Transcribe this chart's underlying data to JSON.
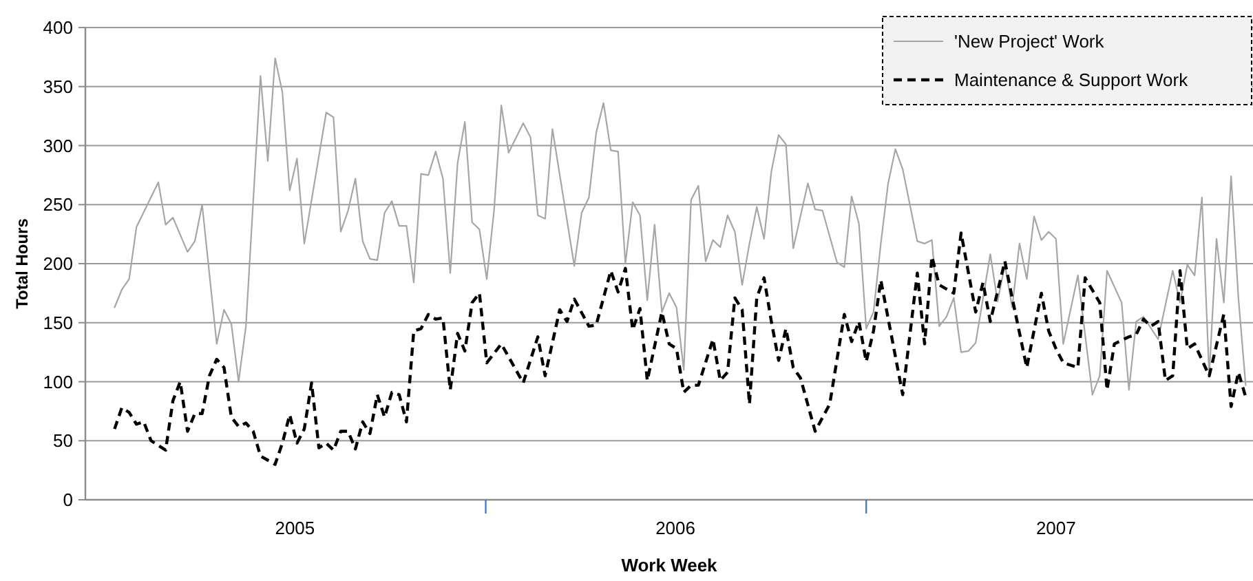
{
  "chart_data": {
    "type": "line",
    "xlabel": "Work Week",
    "ylabel": "Total Hours",
    "xlim": [
      "2004-12-13",
      "2008-01-07"
    ],
    "ylim": [
      0,
      400
    ],
    "xticks": [
      {
        "value": "2005-07-02",
        "label": "2005"
      },
      {
        "value": "2006-01-01",
        "label": null
      },
      {
        "value": "2006-07-02",
        "label": "2006"
      },
      {
        "value": "2007-01-01",
        "label": null
      },
      {
        "value": "2007-07-02",
        "label": "2007"
      }
    ],
    "yticks": [
      0,
      50,
      100,
      150,
      200,
      250,
      300,
      350,
      400
    ],
    "grid": "y",
    "legend": "top right",
    "marker": "none",
    "series": [
      {
        "name": "'New Project' Work",
        "color": "#a6a6a6",
        "line_style": "solid",
        "x": [
          "2005-01-10",
          "2005-01-17",
          "2005-01-24",
          "2005-01-31",
          "2005-02-21",
          "2005-02-28",
          "2005-03-07",
          "2005-03-21",
          "2005-03-28",
          "2005-04-04",
          "2005-04-18",
          "2005-04-25",
          "2005-05-02",
          "2005-05-09",
          "2005-05-16",
          "2005-05-30",
          "2005-06-06",
          "2005-06-13",
          "2005-06-20",
          "2005-06-27",
          "2005-07-04",
          "2005-07-11",
          "2005-08-01",
          "2005-08-08",
          "2005-08-15",
          "2005-08-22",
          "2005-08-29",
          "2005-09-05",
          "2005-09-12",
          "2005-09-19",
          "2005-09-26",
          "2005-10-03",
          "2005-10-10",
          "2005-10-17",
          "2005-10-24",
          "2005-10-31",
          "2005-11-07",
          "2005-11-14",
          "2005-11-21",
          "2005-11-28",
          "2005-12-05",
          "2005-12-12",
          "2005-12-19",
          "2005-12-26",
          "2006-01-02",
          "2006-01-09",
          "2006-01-16",
          "2006-01-23",
          "2006-02-06",
          "2006-02-13",
          "2006-02-20",
          "2006-02-27",
          "2006-03-06",
          "2006-03-27",
          "2006-04-03",
          "2006-04-10",
          "2006-04-17",
          "2006-04-24",
          "2006-05-01",
          "2006-05-08",
          "2006-05-15",
          "2006-05-22",
          "2006-05-29",
          "2006-06-05",
          "2006-06-12",
          "2006-06-19",
          "2006-06-26",
          "2006-07-03",
          "2006-07-10",
          "2006-07-17",
          "2006-07-24",
          "2006-07-31",
          "2006-08-07",
          "2006-08-14",
          "2006-08-21",
          "2006-08-28",
          "2006-09-04",
          "2006-09-11",
          "2006-09-18",
          "2006-09-25",
          "2006-10-02",
          "2006-10-09",
          "2006-10-16",
          "2006-10-23",
          "2006-11-06",
          "2006-11-13",
          "2006-11-20",
          "2006-12-04",
          "2006-12-11",
          "2006-12-18",
          "2006-12-25",
          "2007-01-01",
          "2007-01-08",
          "2007-01-15",
          "2007-01-22",
          "2007-01-29",
          "2007-02-05",
          "2007-02-19",
          "2007-02-26",
          "2007-03-05",
          "2007-03-12",
          "2007-03-19",
          "2007-03-26",
          "2007-04-02",
          "2007-04-09",
          "2007-04-16",
          "2007-04-30",
          "2007-05-07",
          "2007-05-14",
          "2007-05-21",
          "2007-05-28",
          "2007-06-04",
          "2007-06-11",
          "2007-06-18",
          "2007-06-25",
          "2007-07-02",
          "2007-07-09",
          "2007-07-23",
          "2007-08-06",
          "2007-08-13",
          "2007-08-20",
          "2007-09-03",
          "2007-09-10",
          "2007-09-17",
          "2007-09-24",
          "2007-10-08",
          "2007-10-22",
          "2007-10-29",
          "2007-11-05",
          "2007-11-12",
          "2007-11-19",
          "2007-11-26",
          "2007-12-03",
          "2007-12-10",
          "2007-12-17",
          "2007-12-24",
          "2007-12-31"
        ],
        "values": [
          163,
          178,
          187,
          231,
          269,
          233,
          239,
          210,
          219,
          250,
          132,
          161,
          149,
          100,
          147,
          359,
          287,
          374,
          345,
          262,
          289,
          217,
          328,
          324,
          227,
          245,
          272,
          219,
          204,
          203,
          243,
          253,
          232,
          232,
          184,
          276,
          275,
          295,
          272,
          192,
          285,
          320,
          235,
          229,
          187,
          245,
          334,
          294,
          319,
          307,
          241,
          238,
          314,
          198,
          243,
          256,
          311,
          336,
          296,
          295,
          200,
          252,
          241,
          169,
          233,
          159,
          175,
          163,
          110,
          254,
          266,
          202,
          220,
          214,
          241,
          227,
          182,
          217,
          248,
          221,
          278,
          309,
          301,
          213,
          268,
          246,
          245,
          201,
          197,
          257,
          234,
          145,
          159,
          217,
          268,
          297,
          280,
          219,
          217,
          220,
          147,
          155,
          171,
          125,
          126,
          133,
          208,
          168,
          199,
          163,
          217,
          187,
          240,
          220,
          227,
          221,
          132,
          190,
          89,
          105,
          194,
          167,
          93,
          151,
          155,
          136,
          194,
          167,
          199,
          190,
          256,
          105,
          221,
          167,
          274,
          171,
          97
        ]
      },
      {
        "name": "Maintenance & Support Work",
        "color": "#000000",
        "line_style": "dashed",
        "x": [
          "2005-01-10",
          "2005-01-17",
          "2005-01-24",
          "2005-01-31",
          "2005-02-07",
          "2005-02-14",
          "2005-02-28",
          "2005-03-07",
          "2005-03-14",
          "2005-03-21",
          "2005-03-28",
          "2005-04-04",
          "2005-04-11",
          "2005-04-18",
          "2005-04-25",
          "2005-05-02",
          "2005-05-09",
          "2005-05-16",
          "2005-05-23",
          "2005-05-30",
          "2005-06-13",
          "2005-06-20",
          "2005-06-27",
          "2005-07-04",
          "2005-07-11",
          "2005-07-18",
          "2005-07-25",
          "2005-08-01",
          "2005-08-08",
          "2005-08-15",
          "2005-08-22",
          "2005-08-29",
          "2005-09-05",
          "2005-09-12",
          "2005-09-19",
          "2005-09-26",
          "2005-10-03",
          "2005-10-10",
          "2005-10-17",
          "2005-10-24",
          "2005-10-31",
          "2005-11-07",
          "2005-11-14",
          "2005-11-21",
          "2005-11-28",
          "2005-12-05",
          "2005-12-12",
          "2005-12-19",
          "2005-12-26",
          "2006-01-02",
          "2006-01-16",
          "2006-02-06",
          "2006-02-20",
          "2006-02-27",
          "2006-03-13",
          "2006-03-20",
          "2006-03-27",
          "2006-04-10",
          "2006-04-17",
          "2006-05-01",
          "2006-05-08",
          "2006-05-15",
          "2006-05-22",
          "2006-05-29",
          "2006-06-05",
          "2006-06-19",
          "2006-06-26",
          "2006-07-03",
          "2006-07-10",
          "2006-07-17",
          "2006-07-24",
          "2006-08-07",
          "2006-08-14",
          "2006-08-21",
          "2006-08-28",
          "2006-09-04",
          "2006-09-11",
          "2006-09-18",
          "2006-09-25",
          "2006-10-02",
          "2006-10-09",
          "2006-10-16",
          "2006-10-23",
          "2006-10-30",
          "2006-11-13",
          "2006-11-27",
          "2006-12-11",
          "2006-12-18",
          "2006-12-25",
          "2007-01-01",
          "2007-01-08",
          "2007-01-15",
          "2007-02-05",
          "2007-02-19",
          "2007-02-26",
          "2007-03-05",
          "2007-03-12",
          "2007-03-26",
          "2007-04-02",
          "2007-04-16",
          "2007-04-23",
          "2007-04-30",
          "2007-05-14",
          "2007-05-21",
          "2007-06-04",
          "2007-06-18",
          "2007-06-25",
          "2007-07-02",
          "2007-07-09",
          "2007-07-23",
          "2007-07-30",
          "2007-08-13",
          "2007-08-20",
          "2007-08-27",
          "2007-09-10",
          "2007-09-17",
          "2007-09-24",
          "2007-10-01",
          "2007-10-08",
          "2007-10-15",
          "2007-10-22",
          "2007-10-29",
          "2007-11-05",
          "2007-11-12",
          "2007-11-26",
          "2007-12-10",
          "2007-12-17",
          "2007-12-24",
          "2007-12-31"
        ],
        "values": [
          60,
          78,
          74,
          64,
          66,
          50,
          42,
          84,
          100,
          58,
          73,
          73,
          105,
          119,
          112,
          70,
          62,
          65,
          58,
          37,
          30,
          48,
          72,
          48,
          60,
          99,
          44,
          48,
          42,
          58,
          58,
          43,
          66,
          56,
          89,
          70,
          91,
          89,
          66,
          143,
          145,
          157,
          153,
          154,
          93,
          141,
          126,
          167,
          175,
          116,
          132,
          99,
          138,
          105,
          161,
          151,
          170,
          147,
          148,
          194,
          176,
          196,
          144,
          162,
          101,
          159,
          132,
          128,
          91,
          97,
          97,
          136,
          101,
          108,
          171,
          161,
          81,
          171,
          188,
          151,
          118,
          145,
          112,
          103,
          58,
          81,
          157,
          134,
          151,
          117,
          143,
          186,
          89,
          192,
          132,
          206,
          182,
          175,
          226,
          159,
          184,
          151,
          202,
          171,
          112,
          175,
          143,
          128,
          116,
          112,
          188,
          167,
          93,
          132,
          138,
          140,
          153,
          147,
          151,
          101,
          105,
          194,
          128,
          132,
          105,
          157,
          79,
          108,
          87
        ]
      }
    ]
  }
}
